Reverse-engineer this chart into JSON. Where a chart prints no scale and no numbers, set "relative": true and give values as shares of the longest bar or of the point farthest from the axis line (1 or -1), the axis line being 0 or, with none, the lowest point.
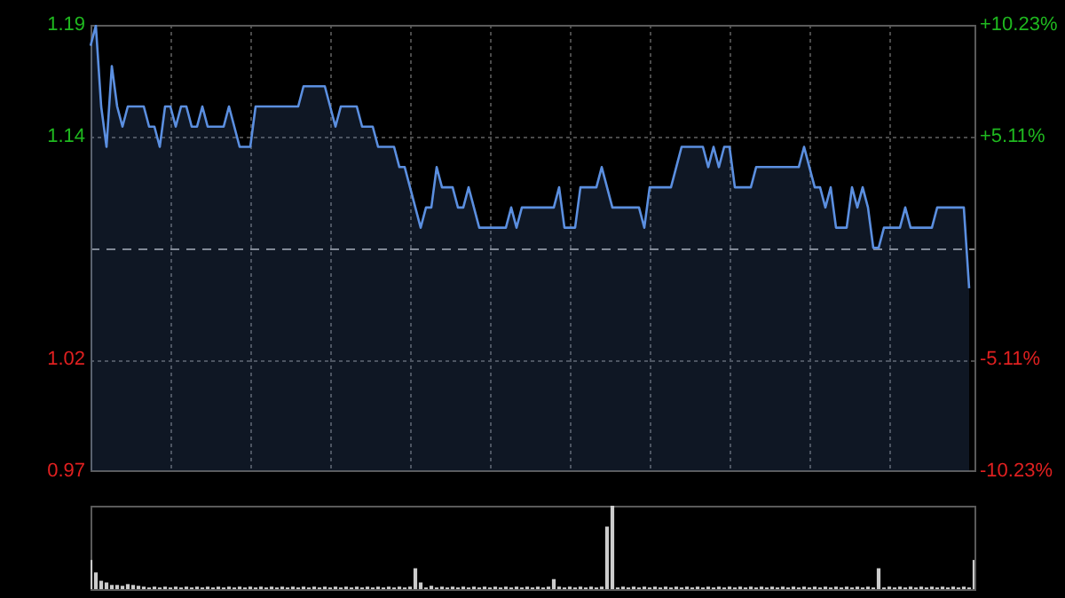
{
  "chart_data": [
    {
      "type": "area",
      "categories": [
        null,
        null,
        null,
        null,
        null,
        null,
        null,
        null,
        null,
        null,
        null,
        null,
        null,
        null,
        null,
        null,
        null,
        null,
        null,
        null,
        null,
        null,
        null,
        null,
        null,
        null,
        null,
        null,
        null,
        null,
        null,
        null,
        null,
        null,
        null,
        null,
        null,
        null,
        null,
        null,
        null,
        null,
        null,
        null,
        null,
        null,
        null,
        null,
        null,
        null,
        null,
        null,
        null,
        null,
        null,
        null,
        null,
        null,
        null,
        null,
        null,
        null,
        null,
        null,
        null,
        null,
        null,
        null,
        null,
        null,
        null,
        null,
        null,
        null,
        null,
        null,
        null,
        null,
        null,
        null,
        null,
        null,
        null,
        null,
        null,
        null,
        null,
        null,
        null,
        null,
        null,
        null,
        null,
        null,
        null,
        null,
        null,
        null,
        null,
        null,
        null,
        null,
        null,
        null,
        null,
        null,
        null,
        null,
        null,
        null,
        null,
        null,
        null,
        null,
        null,
        null,
        null,
        null,
        null,
        null,
        null,
        null,
        null,
        null,
        null,
        null,
        null,
        null,
        null,
        null,
        null,
        null,
        null,
        null,
        null,
        null,
        null,
        null,
        null,
        null,
        null,
        null,
        null,
        null,
        null,
        null,
        null,
        null,
        null,
        null,
        null,
        null,
        null,
        null,
        null,
        null,
        null,
        null,
        null,
        null,
        null,
        null,
        null,
        null,
        null,
        null,
        null
      ],
      "series": [
        {
          "color": "#5b8fe0",
          "values": [
            1.18,
            1.19,
            1.15,
            1.13,
            1.17,
            1.15,
            1.14,
            1.15,
            1.15,
            1.15,
            1.15,
            1.14,
            1.14,
            1.13,
            1.15,
            1.15,
            1.14,
            1.15,
            1.15,
            1.14,
            1.14,
            1.15,
            1.14,
            1.14,
            1.14,
            1.14,
            1.15,
            1.14,
            1.13,
            1.13,
            1.13,
            1.15,
            1.15,
            1.15,
            1.15,
            1.15,
            1.15,
            1.15,
            1.15,
            1.15,
            1.16,
            1.16,
            1.16,
            1.16,
            1.16,
            1.15,
            1.14,
            1.15,
            1.15,
            1.15,
            1.15,
            1.14,
            1.14,
            1.14,
            1.13,
            1.13,
            1.13,
            1.13,
            1.12,
            1.12,
            1.11,
            1.1,
            1.09,
            1.1,
            1.1,
            1.12,
            1.11,
            1.11,
            1.11,
            1.1,
            1.1,
            1.11,
            1.1,
            1.09,
            1.09,
            1.09,
            1.09,
            1.09,
            1.09,
            1.1,
            1.09,
            1.1,
            1.1,
            1.1,
            1.1,
            1.1,
            1.1,
            1.1,
            1.11,
            1.09,
            1.09,
            1.09,
            1.11,
            1.11,
            1.11,
            1.11,
            1.12,
            1.11,
            1.1,
            1.1,
            1.1,
            1.1,
            1.1,
            1.1,
            1.09,
            1.11,
            1.11,
            1.11,
            1.11,
            1.11,
            1.12,
            1.13,
            1.13,
            1.13,
            1.13,
            1.13,
            1.12,
            1.13,
            1.12,
            1.13,
            1.13,
            1.11,
            1.11,
            1.11,
            1.11,
            1.12,
            1.12,
            1.12,
            1.12,
            1.12,
            1.12,
            1.12,
            1.12,
            1.12,
            1.13,
            1.12,
            1.11,
            1.11,
            1.1,
            1.11,
            1.09,
            1.09,
            1.09,
            1.11,
            1.1,
            1.11,
            1.1,
            1.08,
            1.08,
            1.09,
            1.09,
            1.09,
            1.09,
            1.1,
            1.09,
            1.09,
            1.09,
            1.09,
            1.09,
            1.1,
            1.1,
            1.1,
            1.1,
            1.1,
            1.1,
            1.06,
            null
          ]
        }
      ],
      "ylim": [
        0.9696,
        1.1904
      ],
      "yticks": [
        {
          "value": 0.9696,
          "label": "0.97"
        },
        {
          "value": 1.0248,
          "label": "1.02"
        },
        {
          "value": 1.1352,
          "label": "1.14"
        },
        {
          "value": 1.1904,
          "label": "1.19"
        }
      ],
      "y2lim": [
        -10.23,
        10.23
      ],
      "y2ticks": [
        {
          "value": -10.23,
          "label": "-10.23%"
        },
        {
          "value": -5.11,
          "label": "-5.11%"
        },
        {
          "value": 5.11,
          "label": "+5.11%"
        },
        {
          "value": 10.23,
          "label": "+10.23%"
        }
      ],
      "ref_lines": [
        {
          "axis": "y",
          "value": 1.08,
          "color": "#888888",
          "line_style": "dashed"
        }
      ],
      "grid": true,
      "legend": false,
      "marker": "none",
      "line_style": "solid"
    },
    {
      "type": "bar",
      "relative": true,
      "categories": [
        null,
        null,
        null,
        null,
        null,
        null,
        null,
        null,
        null,
        null,
        null,
        null,
        null,
        null,
        null,
        null,
        null,
        null,
        null,
        null,
        null,
        null,
        null,
        null,
        null,
        null,
        null,
        null,
        null,
        null,
        null,
        null,
        null,
        null,
        null,
        null,
        null,
        null,
        null,
        null,
        null,
        null,
        null,
        null,
        null,
        null,
        null,
        null,
        null,
        null,
        null,
        null,
        null,
        null,
        null,
        null,
        null,
        null,
        null,
        null,
        null,
        null,
        null,
        null,
        null,
        null,
        null,
        null,
        null,
        null,
        null,
        null,
        null,
        null,
        null,
        null,
        null,
        null,
        null,
        null,
        null,
        null,
        null,
        null,
        null,
        null,
        null,
        null,
        null,
        null,
        null,
        null,
        null,
        null,
        null,
        null,
        null,
        null,
        null,
        null,
        null,
        null,
        null,
        null,
        null,
        null,
        null,
        null,
        null,
        null,
        null,
        null,
        null,
        null,
        null,
        null,
        null,
        null,
        null,
        null,
        null,
        null,
        null,
        null,
        null,
        null,
        null,
        null,
        null,
        null,
        null,
        null,
        null,
        null,
        null,
        null,
        null,
        null,
        null,
        null,
        null,
        null,
        null,
        null,
        null,
        null,
        null,
        null,
        null,
        null,
        null,
        null,
        null,
        null,
        null,
        null,
        null,
        null,
        null,
        null,
        null,
        null,
        null,
        null,
        null,
        null,
        null
      ],
      "color": "#cccccc",
      "values": [
        0.35,
        0.2,
        0.1,
        0.08,
        0.05,
        0.05,
        0.04,
        0.06,
        0.05,
        0.04,
        0.03,
        0.02,
        0.03,
        0.02,
        0.03,
        0.02,
        0.03,
        0.02,
        0.03,
        0.02,
        0.03,
        0.02,
        0.03,
        0.02,
        0.03,
        0.02,
        0.03,
        0.02,
        0.03,
        0.02,
        0.03,
        0.02,
        0.03,
        0.02,
        0.03,
        0.02,
        0.03,
        0.02,
        0.03,
        0.02,
        0.03,
        0.02,
        0.03,
        0.02,
        0.03,
        0.02,
        0.03,
        0.02,
        0.03,
        0.02,
        0.03,
        0.02,
        0.03,
        0.02,
        0.03,
        0.02,
        0.03,
        0.02,
        0.03,
        0.02,
        0.03,
        0.25,
        0.08,
        0.02,
        0.04,
        0.02,
        0.03,
        0.02,
        0.03,
        0.02,
        0.03,
        0.02,
        0.03,
        0.02,
        0.03,
        0.02,
        0.03,
        0.02,
        0.03,
        0.02,
        0.03,
        0.02,
        0.03,
        0.02,
        0.03,
        0.02,
        0.03,
        0.12,
        0.03,
        0.02,
        0.03,
        0.02,
        0.03,
        0.02,
        0.03,
        0.02,
        0.03,
        0.75,
        1,
        0.02,
        0.03,
        0.02,
        0.03,
        0.02,
        0.03,
        0.02,
        0.03,
        0.02,
        0.03,
        0.02,
        0.03,
        0.02,
        0.03,
        0.02,
        0.03,
        0.02,
        0.03,
        0.02,
        0.03,
        0.02,
        0.03,
        0.02,
        0.03,
        0.02,
        0.03,
        0.02,
        0.03,
        0.02,
        0.03,
        0.02,
        0.03,
        0.02,
        0.03,
        0.02,
        0.03,
        0.02,
        0.03,
        0.02,
        0.03,
        0.02,
        0.03,
        0.02,
        0.03,
        0.02,
        0.03,
        0.02,
        0.03,
        0.02,
        0.25,
        0.02,
        0.03,
        0.02,
        0.03,
        0.02,
        0.03,
        0.02,
        0.03,
        0.02,
        0.03,
        0.02,
        0.03,
        0.02,
        0.03,
        0.02,
        0.03,
        0.02,
        0.35
      ],
      "legend": false
    }
  ]
}
